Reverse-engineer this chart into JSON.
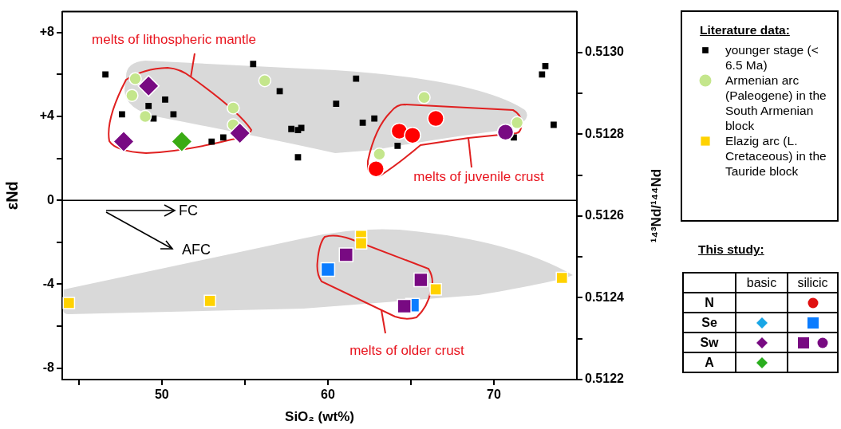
{
  "chart_data": {
    "type": "scatter",
    "xlabel": "SiO₂ (wt%)",
    "ylabel": "εNd",
    "y2label": "¹⁴³Nd/¹⁴⁴Nd",
    "xlim": [
      44,
      75
    ],
    "xticks": [
      {
        "value": 45,
        "label": null
      },
      50,
      {
        "value": 55,
        "label": null
      },
      60,
      {
        "value": 65,
        "label": null
      },
      70
    ],
    "ylim": [
      -8.55,
      9
    ],
    "yticks": [
      {
        "value": -8,
        "label": "-8"
      },
      {
        "value": -6,
        "label": null
      },
      {
        "value": -4,
        "label": "-4"
      },
      {
        "value": -2,
        "label": null
      },
      0,
      {
        "value": 2,
        "label": null
      },
      {
        "value": 4,
        "label": "+4"
      },
      {
        "value": 6,
        "label": null
      },
      {
        "value": 8,
        "label": "+8"
      }
    ],
    "y2lim": [
      0.5122,
      0.5131
    ],
    "y2ticks": [
      {
        "value": 0.5122,
        "label": "0.5122"
      },
      {
        "value": 0.5123,
        "label": null
      },
      {
        "value": 0.5124,
        "label": "0.5124"
      },
      {
        "value": 0.5125,
        "label": null
      },
      {
        "value": 0.5126,
        "label": "0.5126"
      },
      {
        "value": 0.5127,
        "label": null
      },
      {
        "value": 0.5128,
        "label": "0.5128"
      },
      {
        "value": 0.5129,
        "label": null
      },
      {
        "value": 0.513,
        "label": "0.5130"
      }
    ],
    "grid": false,
    "legend": "right",
    "legend_title": "Literature data:",
    "ref_lines": [
      {
        "axis": "y",
        "value": 0,
        "color": "#000000"
      }
    ],
    "annotations": [
      "melts of lithospheric mantle",
      "melts of juvenile crust",
      "melts of older crust",
      "FC",
      "AFC",
      "This study:",
      "basic",
      "silicic",
      "N",
      "Se",
      "Sw",
      "A"
    ],
    "series": [
      {
        "name": "younger stage (< 6.5 Ma)",
        "color": "#000000",
        "marker": "square",
        "x": [
          46.6,
          47.6,
          49.2,
          50.2,
          49.5,
          50.7,
          53.0,
          53.7,
          55.5,
          57.1,
          57.8,
          58.2,
          58.4,
          58.2,
          61.7,
          60.5,
          62.1,
          62.8,
          64.2,
          71.2,
          72.9,
          73.1,
          73.6
        ],
        "values": [
          6.0,
          4.1,
          4.5,
          4.8,
          3.9,
          4.1,
          2.8,
          3.0,
          6.5,
          5.2,
          3.4,
          3.35,
          3.45,
          2.05,
          5.8,
          4.6,
          3.7,
          3.9,
          2.6,
          3.0,
          6.0,
          6.4,
          3.6
        ]
      },
      {
        "name": "Armenian arc (Paleogene) in the South Armenian block",
        "color": "#c4e68c",
        "marker": "circle",
        "x": [
          48.4,
          48.2,
          49.0,
          54.3,
          54.3,
          56.2,
          65.8,
          71.4,
          63.1
        ],
        "values": [
          5.8,
          5.0,
          4.0,
          4.4,
          3.6,
          5.7,
          4.9,
          3.7,
          2.2
        ]
      },
      {
        "name": "Elazig arc (L. Cretaceous) in the Tauride block",
        "color": "#ffd200",
        "marker": "square",
        "x": [
          44.4,
          52.9,
          62.0,
          62.0,
          66.5,
          74.1
        ],
        "values": [
          -4.9,
          -4.8,
          -1.7,
          -2.05,
          -4.25,
          -3.7
        ]
      },
      {
        "color": "#ff0000",
        "marker": "circle",
        "x": [
          64.3,
          65.1,
          66.5,
          62.9
        ],
        "values": [
          3.3,
          3.1,
          3.9,
          1.5
        ]
      },
      {
        "color": "#0a7cff",
        "marker": "square",
        "x": [
          60.0,
          65.1
        ],
        "values": [
          -3.3,
          -5.0
        ]
      },
      {
        "color": "#780a82",
        "marker": "square",
        "x": [
          61.1,
          65.6,
          64.6
        ],
        "values": [
          -2.6,
          -3.8,
          -5.05
        ]
      },
      {
        "color": "#780a82",
        "marker": "circle",
        "x": [
          70.7
        ],
        "values": [
          3.25
        ]
      },
      {
        "color": "#780a82",
        "marker": "diamond",
        "x": [
          49.2,
          47.7,
          54.7
        ],
        "values": [
          5.45,
          2.8,
          3.2
        ]
      },
      {
        "color": "#3aab14",
        "marker": "diamond",
        "x": [
          51.2
        ],
        "values": [
          2.8
        ]
      }
    ]
  }
}
